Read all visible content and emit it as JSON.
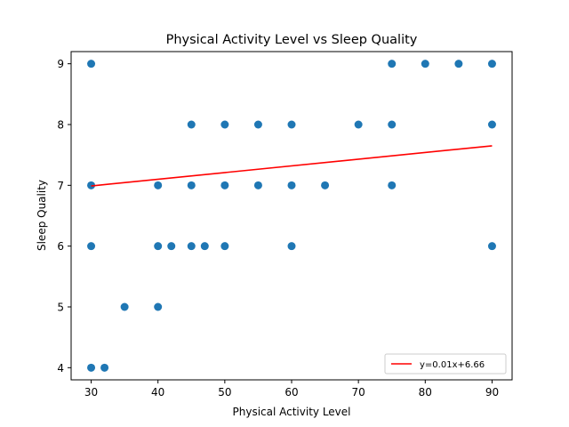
{
  "chart_data": {
    "type": "scatter",
    "title": "Physical Activity Level vs Sleep Quality",
    "xlabel": "Physical Activity Level",
    "ylabel": "Sleep Quality",
    "xlim": [
      27,
      93
    ],
    "ylim": [
      3.8,
      9.2
    ],
    "xticks": [
      30,
      40,
      50,
      60,
      70,
      80,
      90
    ],
    "yticks": [
      4,
      5,
      6,
      7,
      8,
      9
    ],
    "grid": false,
    "legend_position": "lower-right",
    "colors": {
      "points": "#1f77b4",
      "fit_line": "#ff0000"
    },
    "points": [
      {
        "x": 30,
        "y": 9
      },
      {
        "x": 30,
        "y": 7
      },
      {
        "x": 30,
        "y": 6
      },
      {
        "x": 30,
        "y": 4
      },
      {
        "x": 32,
        "y": 4
      },
      {
        "x": 35,
        "y": 5
      },
      {
        "x": 40,
        "y": 7
      },
      {
        "x": 40,
        "y": 6
      },
      {
        "x": 40,
        "y": 5
      },
      {
        "x": 42,
        "y": 6
      },
      {
        "x": 45,
        "y": 8
      },
      {
        "x": 45,
        "y": 7
      },
      {
        "x": 45,
        "y": 6
      },
      {
        "x": 47,
        "y": 6
      },
      {
        "x": 50,
        "y": 8
      },
      {
        "x": 50,
        "y": 7
      },
      {
        "x": 50,
        "y": 6
      },
      {
        "x": 55,
        "y": 8
      },
      {
        "x": 55,
        "y": 7
      },
      {
        "x": 60,
        "y": 8
      },
      {
        "x": 60,
        "y": 7
      },
      {
        "x": 60,
        "y": 6
      },
      {
        "x": 65,
        "y": 7
      },
      {
        "x": 70,
        "y": 8
      },
      {
        "x": 75,
        "y": 9
      },
      {
        "x": 75,
        "y": 8
      },
      {
        "x": 75,
        "y": 7
      },
      {
        "x": 80,
        "y": 9
      },
      {
        "x": 85,
        "y": 9
      },
      {
        "x": 90,
        "y": 9
      },
      {
        "x": 90,
        "y": 8
      },
      {
        "x": 90,
        "y": 6
      }
    ],
    "fit_line": {
      "label": "y=0.01x+6.66",
      "x": [
        30,
        90
      ],
      "y": [
        6.99,
        7.65
      ]
    }
  }
}
